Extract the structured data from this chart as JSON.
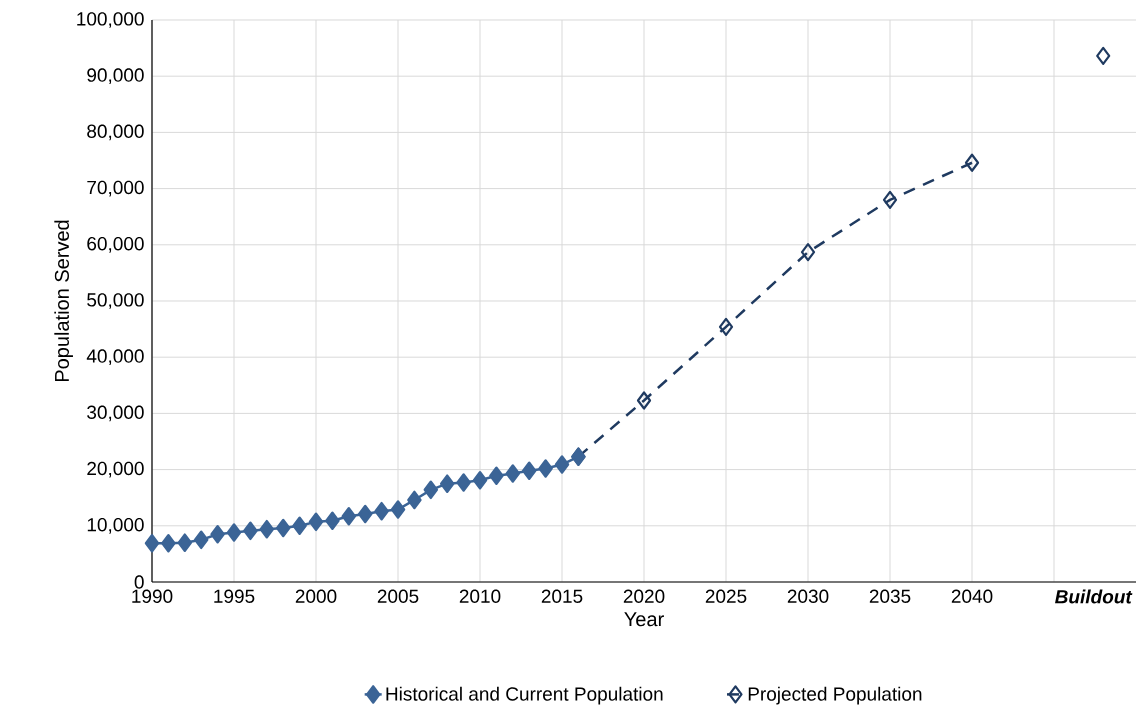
{
  "chart_data": {
    "type": "line",
    "xlabel": "Year",
    "ylabel": "Population Served",
    "xlim": [
      1990,
      2050
    ],
    "ylim": [
      0,
      100000
    ],
    "xticks": [
      1990,
      1995,
      2000,
      2005,
      2010,
      2015,
      2020,
      2025,
      2030,
      2035,
      2040,
      {
        "value": 2045,
        "label": null
      },
      {
        "value": 2048,
        "label": "Buildout"
      }
    ],
    "yticks": [
      0,
      {
        "value": 10000,
        "label": "10,000"
      },
      {
        "value": 20000,
        "label": "20,000"
      },
      {
        "value": 30000,
        "label": "30,000"
      },
      {
        "value": 40000,
        "label": "40,000"
      },
      {
        "value": 50000,
        "label": "50,000"
      },
      {
        "value": 60000,
        "label": "60,000"
      },
      {
        "value": 70000,
        "label": "70,000"
      },
      {
        "value": 80000,
        "label": "80,000"
      },
      {
        "value": 90000,
        "label": "90,000"
      },
      {
        "value": 100000,
        "label": "100,000"
      }
    ],
    "grid": true,
    "legend": "bottom",
    "marker": "diamond",
    "series": [
      {
        "name": "Historical and Current Population",
        "color": "#3b6496",
        "line_style": "solid",
        "x": [
          1990,
          1991,
          1992,
          1993,
          1994,
          1995,
          1996,
          1997,
          1998,
          1999,
          2000,
          2001,
          2002,
          2003,
          2004,
          2005,
          2006,
          2007,
          2008,
          2009,
          2010,
          2011,
          2012,
          2013,
          2014,
          2015,
          2016
        ],
        "values": [
          6900,
          6900,
          7000,
          7500,
          8500,
          8800,
          9100,
          9400,
          9600,
          10000,
          10700,
          10900,
          11700,
          12100,
          12600,
          12900,
          14600,
          16400,
          17500,
          17700,
          18100,
          18900,
          19300,
          19800,
          20200,
          20900,
          22300
        ]
      },
      {
        "name": "Projected Population",
        "color": "#1f3a60",
        "line_style": "dashed",
        "x": [
          2016,
          2020,
          2025,
          2030,
          2035,
          2040,
          2044,
          2048
        ],
        "values": [
          22300,
          32300,
          45400,
          58700,
          68000,
          74600,
          null,
          93600
        ]
      }
    ]
  }
}
